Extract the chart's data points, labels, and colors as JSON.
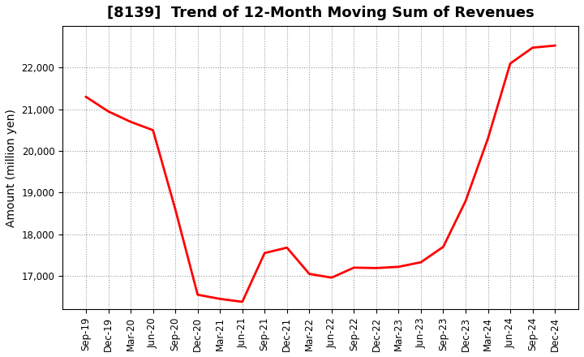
{
  "title": "[8139]  Trend of 12-Month Moving Sum of Revenues",
  "ylabel": "Amount (million yen)",
  "line_color": "#ff0000",
  "line_width": 2.0,
  "background_color": "#ffffff",
  "grid_color": "#999999",
  "x_labels": [
    "Sep-19",
    "Dec-19",
    "Mar-20",
    "Jun-20",
    "Sep-20",
    "Dec-20",
    "Mar-21",
    "Jun-21",
    "Sep-21",
    "Dec-21",
    "Mar-22",
    "Jun-22",
    "Sep-22",
    "Dec-22",
    "Mar-23",
    "Jun-23",
    "Sep-23",
    "Dec-23",
    "Mar-24",
    "Jun-24",
    "Sep-24",
    "Dec-24"
  ],
  "values": [
    21300,
    20950,
    20700,
    20500,
    18600,
    16550,
    16450,
    16380,
    17550,
    17680,
    17050,
    16960,
    17200,
    17190,
    17220,
    17330,
    17700,
    18800,
    20300,
    22100,
    22480,
    22530
  ],
  "ylim": [
    16200,
    23000
  ],
  "yticks": [
    17000,
    18000,
    19000,
    20000,
    21000,
    22000
  ],
  "title_fontsize": 13,
  "ylabel_fontsize": 10,
  "tick_fontsize": 8.5
}
